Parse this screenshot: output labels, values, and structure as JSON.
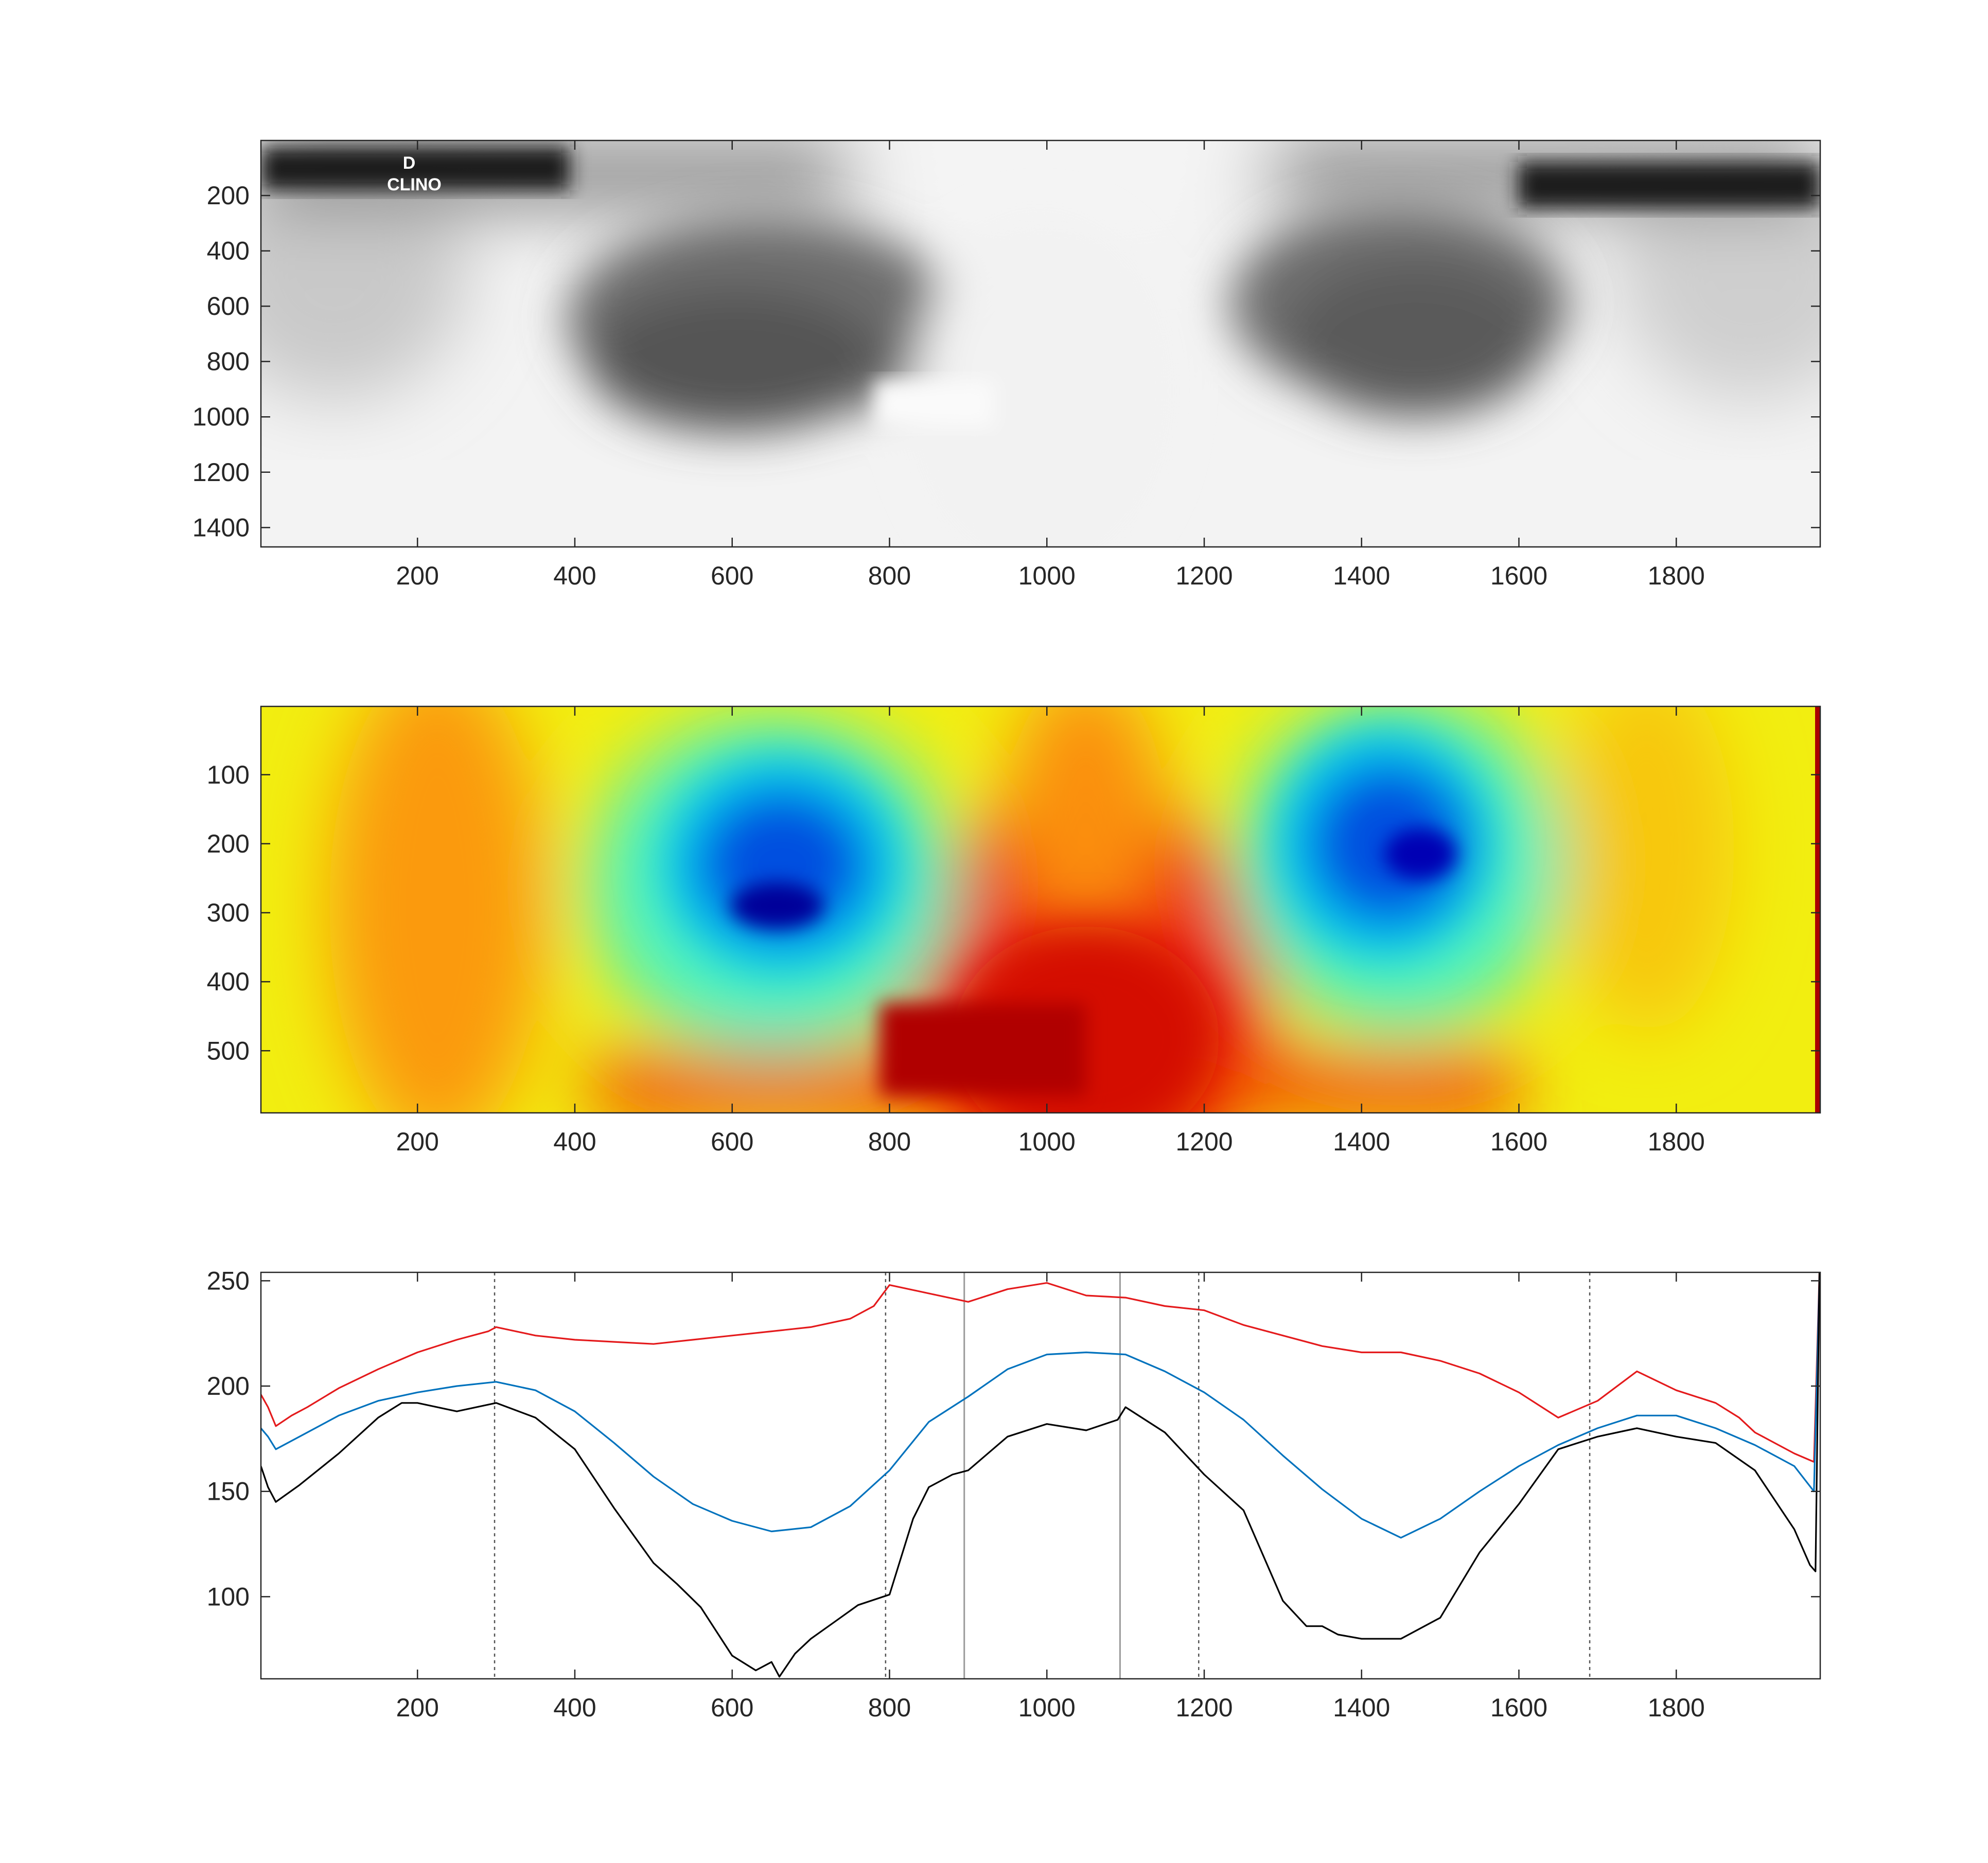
{
  "figure": {
    "xray_overlay_text": [
      "D",
      "CLINO"
    ]
  },
  "chart_data": [
    {
      "type": "image",
      "colormap": "gray",
      "title": "",
      "xlabel": "",
      "ylabel": "",
      "xlim": [
        1,
        1983
      ],
      "ylim": [
        1,
        1470
      ],
      "y_reversed": true,
      "xticks": [
        200,
        400,
        600,
        800,
        1000,
        1200,
        1400,
        1600,
        1800
      ],
      "yticks": [
        200,
        400,
        600,
        800,
        1000,
        1200,
        1400
      ]
    },
    {
      "type": "heatmap",
      "colormap": "jet",
      "title": "",
      "xlabel": "",
      "ylabel": "",
      "xlim": [
        1,
        1983
      ],
      "ylim": [
        1,
        590
      ],
      "y_reversed": true,
      "xticks": [
        200,
        400,
        600,
        800,
        1000,
        1200,
        1400,
        1600,
        1800
      ],
      "yticks": [
        100,
        200,
        300,
        400,
        500
      ]
    },
    {
      "type": "line",
      "title": "",
      "xlabel": "",
      "ylabel": "",
      "xlim": [
        1,
        1983
      ],
      "ylim": [
        61,
        254
      ],
      "xticks": [
        200,
        400,
        600,
        800,
        1000,
        1200,
        1400,
        1600,
        1800
      ],
      "yticks": [
        100,
        150,
        200,
        250
      ],
      "grid": false,
      "series": [
        {
          "color": "#e41a1c",
          "x": [
            1,
            10,
            20,
            40,
            60,
            100,
            150,
            200,
            250,
            290,
            300,
            350,
            400,
            450,
            500,
            550,
            600,
            650,
            700,
            750,
            780,
            800,
            850,
            900,
            950,
            1000,
            1050,
            1100,
            1150,
            1200,
            1250,
            1300,
            1350,
            1400,
            1450,
            1500,
            1550,
            1600,
            1650,
            1700,
            1750,
            1800,
            1850,
            1880,
            1900,
            1950,
            1975,
            1982
          ],
          "values": [
            196,
            190,
            181,
            186,
            190,
            199,
            208,
            216,
            222,
            226,
            228,
            224,
            222,
            221,
            220,
            222,
            224,
            226,
            228,
            232,
            238,
            248,
            244,
            240,
            246,
            249,
            243,
            242,
            238,
            236,
            229,
            224,
            219,
            216,
            216,
            212,
            206,
            197,
            185,
            193,
            207,
            198,
            192,
            185,
            178,
            168,
            164,
            254
          ]
        },
        {
          "color": "#0072bd",
          "x": [
            1,
            10,
            20,
            50,
            100,
            150,
            200,
            250,
            300,
            350,
            400,
            450,
            500,
            550,
            600,
            650,
            700,
            750,
            800,
            850,
            900,
            950,
            1000,
            1050,
            1100,
            1150,
            1200,
            1250,
            1300,
            1350,
            1400,
            1450,
            1500,
            1550,
            1600,
            1650,
            1700,
            1750,
            1800,
            1850,
            1900,
            1950,
            1975,
            1982
          ],
          "values": [
            180,
            176,
            170,
            176,
            186,
            193,
            197,
            200,
            202,
            198,
            188,
            173,
            157,
            144,
            136,
            131,
            133,
            143,
            160,
            183,
            195,
            208,
            215,
            216,
            215,
            207,
            197,
            184,
            167,
            151,
            137,
            128,
            137,
            150,
            162,
            172,
            180,
            186,
            186,
            180,
            172,
            162,
            150,
            252
          ]
        },
        {
          "color": "#000000",
          "x": [
            1,
            10,
            20,
            50,
            100,
            150,
            180,
            200,
            250,
            300,
            350,
            400,
            450,
            500,
            530,
            560,
            600,
            630,
            650,
            660,
            680,
            700,
            730,
            760,
            800,
            830,
            850,
            880,
            900,
            950,
            1000,
            1050,
            1090,
            1100,
            1150,
            1200,
            1250,
            1300,
            1330,
            1350,
            1370,
            1400,
            1450,
            1500,
            1550,
            1600,
            1650,
            1700,
            1750,
            1800,
            1850,
            1900,
            1950,
            1970,
            1977,
            1982
          ],
          "values": [
            162,
            152,
            145,
            153,
            168,
            185,
            192,
            192,
            188,
            192,
            185,
            170,
            142,
            116,
            106,
            95,
            72,
            65,
            69,
            62,
            73,
            80,
            88,
            96,
            101,
            137,
            152,
            158,
            160,
            176,
            182,
            179,
            184,
            190,
            178,
            158,
            141,
            98,
            86,
            86,
            82,
            80,
            80,
            90,
            121,
            144,
            170,
            176,
            180,
            176,
            173,
            160,
            132,
            115,
            112,
            254
          ]
        }
      ],
      "vertical_lines": [
        {
          "x": 298,
          "style": "dotted"
        },
        {
          "x": 795,
          "style": "dotted"
        },
        {
          "x": 895,
          "style": "solid"
        },
        {
          "x": 1093,
          "style": "solid"
        },
        {
          "x": 1193,
          "style": "dotted"
        },
        {
          "x": 1690,
          "style": "dotted"
        }
      ]
    }
  ]
}
